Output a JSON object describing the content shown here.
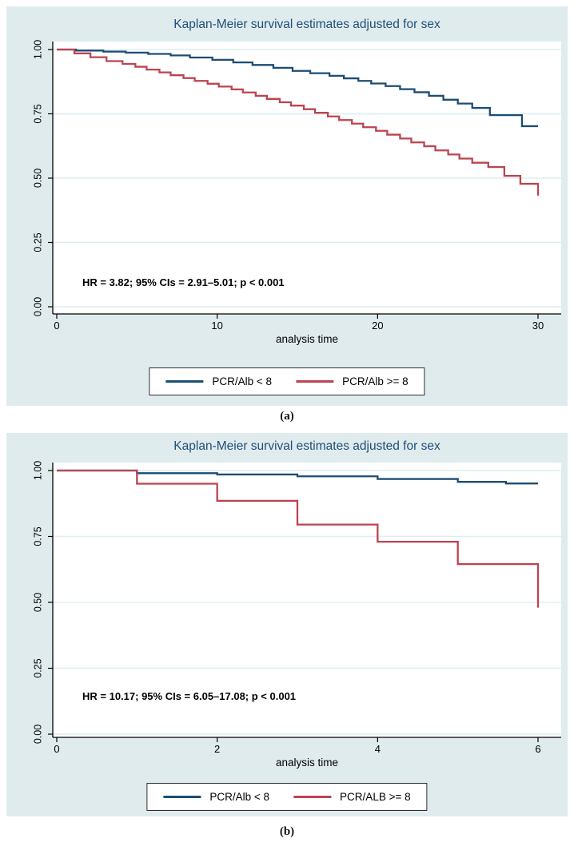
{
  "figure": {
    "captions": [
      "(a)",
      "(b)"
    ]
  },
  "colors": {
    "panel_background": "#e0ebed",
    "plot_background": "#ffffff",
    "gridline": "#ddeef1",
    "axis": "#000000",
    "title_text": "#1e4f7a",
    "navy_series": "#1c4d74",
    "red_series": "#bb4450",
    "text": "#000000"
  },
  "chart_data": [
    {
      "type": "line",
      "subtype": "kaplan-meier-step",
      "title": "Kaplan-Meier survival estimates adjusted for sex",
      "xlabel": "analysis time",
      "x_max": 30,
      "x_ticks": [
        0,
        10,
        20,
        30
      ],
      "x_tick_labels": [
        "0",
        "10",
        "20",
        "30"
      ],
      "ylim": [
        0,
        1
      ],
      "y_ticks": [
        0,
        0.25,
        0.5,
        0.75,
        1
      ],
      "y_tick_labels": [
        "0.00",
        "0.25",
        "0.50",
        "0.75",
        "1.00"
      ],
      "grid": true,
      "legend_position": "bottom-center",
      "annotation": "HR = 3.82; 95% CIs = 2.91–5.01; p < 0.001",
      "series": [
        {
          "name": "PCR/Alb < 8",
          "color": "#1c4d74",
          "steps": [
            [
              0,
              1.0
            ],
            [
              1.2,
              0.996
            ],
            [
              2.9,
              0.992
            ],
            [
              4.3,
              0.988
            ],
            [
              5.7,
              0.983
            ],
            [
              7.1,
              0.977
            ],
            [
              8.3,
              0.969
            ],
            [
              9.7,
              0.96
            ],
            [
              11,
              0.95
            ],
            [
              12.2,
              0.94
            ],
            [
              13.5,
              0.929
            ],
            [
              14.7,
              0.917
            ],
            [
              15.8,
              0.908
            ],
            [
              17,
              0.898
            ],
            [
              17.9,
              0.888
            ],
            [
              18.8,
              0.878
            ],
            [
              19.6,
              0.868
            ],
            [
              20.5,
              0.858
            ],
            [
              21.4,
              0.846
            ],
            [
              22.3,
              0.834
            ],
            [
              23.2,
              0.82
            ],
            [
              24.1,
              0.805
            ],
            [
              25,
              0.79
            ],
            [
              25.9,
              0.773
            ],
            [
              27,
              0.745
            ],
            [
              29,
              0.702
            ]
          ]
        },
        {
          "name": "PCR/Alb >= 8",
          "color": "#bb4450",
          "steps": [
            [
              0,
              1.0
            ],
            [
              1.1,
              0.985
            ],
            [
              2.1,
              0.97
            ],
            [
              3.1,
              0.955
            ],
            [
              4.1,
              0.944
            ],
            [
              4.9,
              0.933
            ],
            [
              5.6,
              0.922
            ],
            [
              6.4,
              0.911
            ],
            [
              7.1,
              0.9
            ],
            [
              7.9,
              0.889
            ],
            [
              8.6,
              0.878
            ],
            [
              9.4,
              0.867
            ],
            [
              10.1,
              0.856
            ],
            [
              10.9,
              0.845
            ],
            [
              11.6,
              0.833
            ],
            [
              12.4,
              0.82
            ],
            [
              13.1,
              0.808
            ],
            [
              13.9,
              0.795
            ],
            [
              14.6,
              0.782
            ],
            [
              15.4,
              0.768
            ],
            [
              16.1,
              0.754
            ],
            [
              16.9,
              0.74
            ],
            [
              17.6,
              0.726
            ],
            [
              18.4,
              0.712
            ],
            [
              19.1,
              0.698
            ],
            [
              19.9,
              0.684
            ],
            [
              20.6,
              0.669
            ],
            [
              21.4,
              0.654
            ],
            [
              22.1,
              0.639
            ],
            [
              22.9,
              0.624
            ],
            [
              23.6,
              0.608
            ],
            [
              24.4,
              0.592
            ],
            [
              25.1,
              0.576
            ],
            [
              25.9,
              0.56
            ],
            [
              26.9,
              0.543
            ],
            [
              27.9,
              0.509
            ],
            [
              28.9,
              0.478
            ],
            [
              30,
              0.432
            ]
          ]
        }
      ]
    },
    {
      "type": "line",
      "subtype": "kaplan-meier-step",
      "title": "Kaplan-Meier survival estimates adjusted for sex",
      "xlabel": "analysis time",
      "x_max": 6,
      "x_ticks": [
        0,
        2,
        4,
        6
      ],
      "x_tick_labels": [
        "0",
        "2",
        "4",
        "6"
      ],
      "ylim": [
        0,
        1
      ],
      "y_ticks": [
        0,
        0.25,
        0.5,
        0.75,
        1
      ],
      "y_tick_labels": [
        "0.00",
        "0.25",
        "0.50",
        "0.75",
        "1.00"
      ],
      "grid": true,
      "legend_position": "bottom-center",
      "annotation": "HR = 10.17; 95% CIs = 6.05–17.08; p < 0.001",
      "series": [
        {
          "name": "PCR/Alb < 8",
          "color": "#1c4d74",
          "steps": [
            [
              0,
              1.0
            ],
            [
              1,
              0.99
            ],
            [
              2,
              0.985
            ],
            [
              3,
              0.978
            ],
            [
              4,
              0.968
            ],
            [
              5,
              0.957
            ],
            [
              5.6,
              0.951
            ]
          ]
        },
        {
          "name": "PCR/ALB >= 8",
          "color": "#bb4450",
          "steps": [
            [
              0,
              1.0
            ],
            [
              1,
              0.95
            ],
            [
              2,
              0.885
            ],
            [
              3,
              0.795
            ],
            [
              4,
              0.73
            ],
            [
              5,
              0.645
            ],
            [
              6,
              0.48
            ]
          ]
        }
      ]
    }
  ]
}
